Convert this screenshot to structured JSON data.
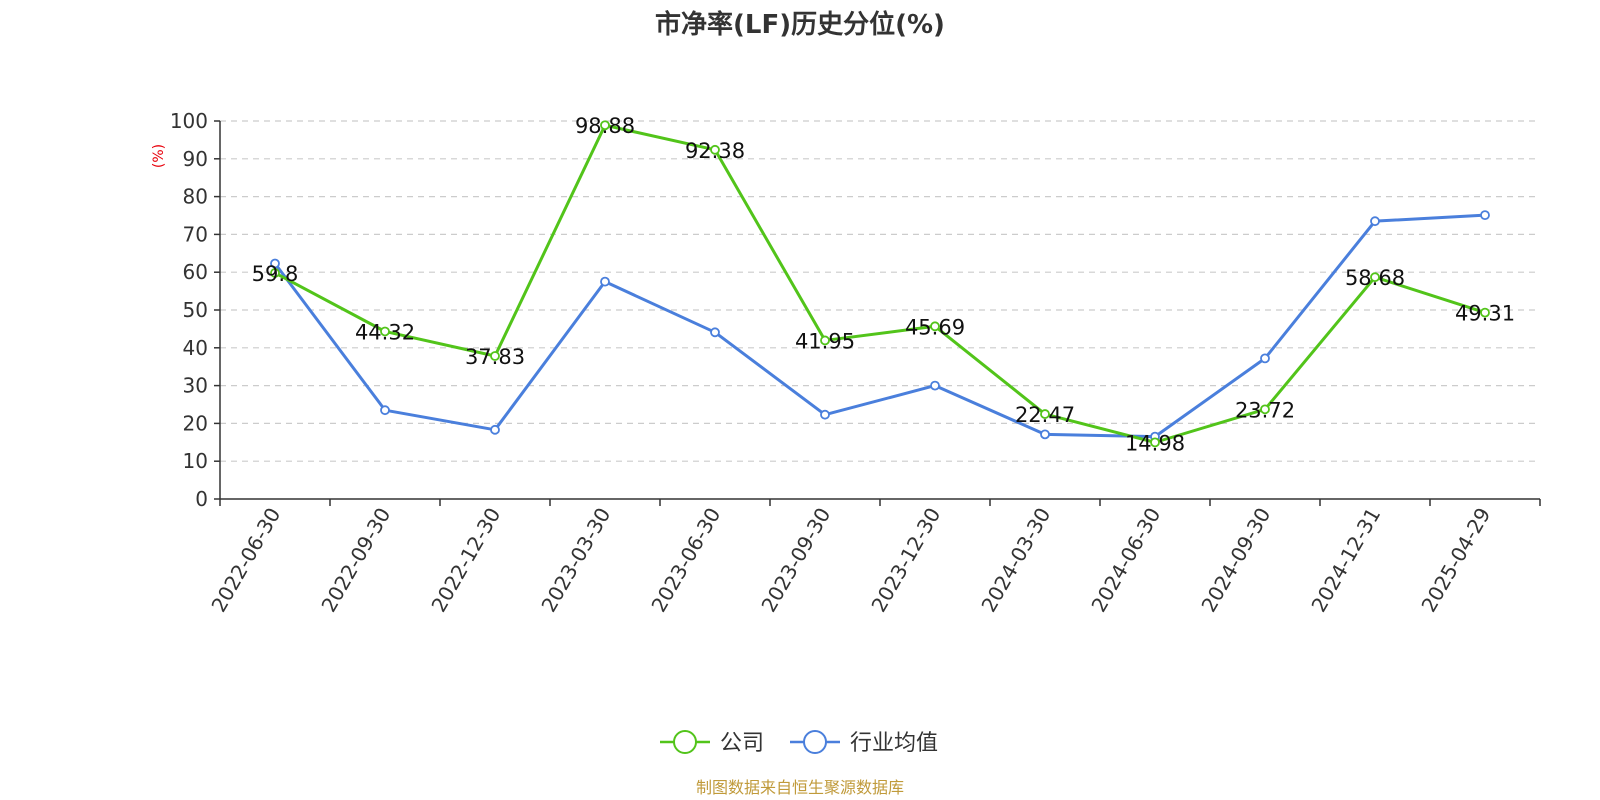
{
  "chart_data": {
    "type": "line",
    "title": "市净率(LF)历史分位(%)",
    "ylabel": "(%)",
    "xlabel": "",
    "ylim": [
      0,
      100
    ],
    "yticks": [
      0,
      10,
      20,
      30,
      40,
      50,
      60,
      70,
      80,
      90,
      100
    ],
    "grid": true,
    "legend_position": "bottom-center",
    "categories": [
      "2022-06-30",
      "2022-09-30",
      "2022-12-30",
      "2023-03-30",
      "2023-06-30",
      "2023-09-30",
      "2023-12-30",
      "2024-03-30",
      "2024-06-30",
      "2024-09-30",
      "2024-12-31",
      "2025-04-29"
    ],
    "series": [
      {
        "name": "公司",
        "color": "#52c41a",
        "values": [
          59.8,
          44.32,
          37.83,
          98.88,
          92.38,
          41.95,
          45.69,
          22.47,
          14.98,
          23.72,
          58.68,
          49.31
        ],
        "labels": [
          "59.8",
          "44.32",
          "37.83",
          "98.88",
          "92.38",
          "41.95",
          "45.69",
          "22.47",
          "14.98",
          "23.72",
          "58.68",
          "49.31"
        ]
      },
      {
        "name": "行业均值",
        "color": "#4a7fdc",
        "values": [
          62.3,
          23.5,
          18.3,
          57.5,
          44.1,
          22.3,
          30.0,
          17.1,
          16.5,
          37.2,
          73.5,
          75.1
        ]
      }
    ],
    "footer": "制图数据来自恒生聚源数据库"
  }
}
